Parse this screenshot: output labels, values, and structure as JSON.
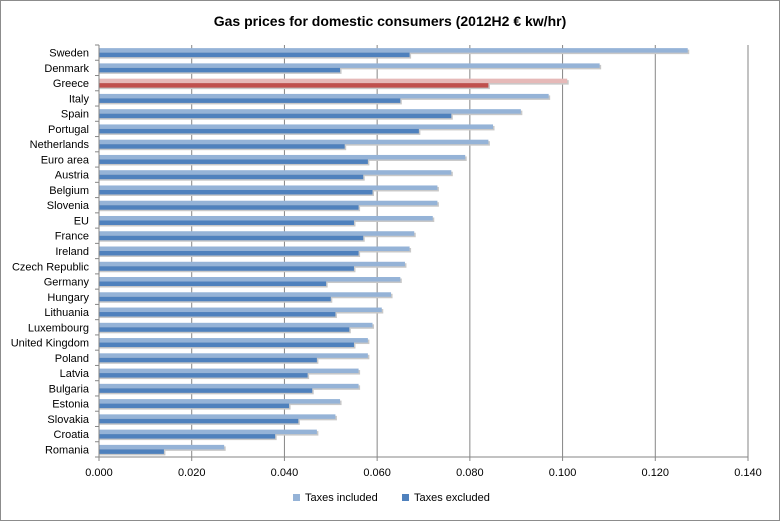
{
  "chart_data": {
    "type": "bar",
    "orientation": "horizontal",
    "title": "Gas prices for domestic consumers (2012H2 € kw/hr)",
    "xlabel": "",
    "ylabel": "",
    "xlim": [
      0,
      0.14
    ],
    "x_ticks": [
      "0.000",
      "0.020",
      "0.040",
      "0.060",
      "0.080",
      "0.100",
      "0.120",
      "0.140"
    ],
    "x_tick_values": [
      0,
      0.02,
      0.04,
      0.06,
      0.08,
      0.1,
      0.12,
      0.14
    ],
    "grid": "vertical major gridlines",
    "legend_position": "bottom",
    "highlight_category": "Greece",
    "categories": [
      "Sweden",
      "Denmark",
      "Greece",
      "Italy",
      "Spain",
      "Portugal",
      "Netherlands",
      "Euro area",
      "Austria",
      "Belgium",
      "Slovenia",
      "EU",
      "France",
      "Ireland",
      "Czech Republic",
      "Germany",
      "Hungary",
      "Lithuania",
      "Luxembourg",
      "United Kingdom",
      "Poland",
      "Latvia",
      "Bulgaria",
      "Estonia",
      "Slovakia",
      "Croatia",
      "Romania"
    ],
    "series": [
      {
        "name": "Taxes included",
        "color": "#95b3d7",
        "highlight_color": "#e6b9b8",
        "values": [
          0.127,
          0.108,
          0.101,
          0.097,
          0.091,
          0.085,
          0.084,
          0.079,
          0.076,
          0.073,
          0.073,
          0.072,
          0.068,
          0.067,
          0.066,
          0.065,
          0.063,
          0.061,
          0.059,
          0.058,
          0.058,
          0.056,
          0.056,
          0.052,
          0.051,
          0.047,
          0.027
        ]
      },
      {
        "name": "Taxes excluded",
        "color": "#4f81bd",
        "highlight_color": "#c0504d",
        "values": [
          0.067,
          0.052,
          0.084,
          0.065,
          0.076,
          0.069,
          0.053,
          0.058,
          0.057,
          0.059,
          0.056,
          0.055,
          0.057,
          0.056,
          0.055,
          0.049,
          0.05,
          0.051,
          0.054,
          0.055,
          0.047,
          0.045,
          0.046,
          0.041,
          0.043,
          0.038,
          0.014
        ]
      }
    ]
  }
}
